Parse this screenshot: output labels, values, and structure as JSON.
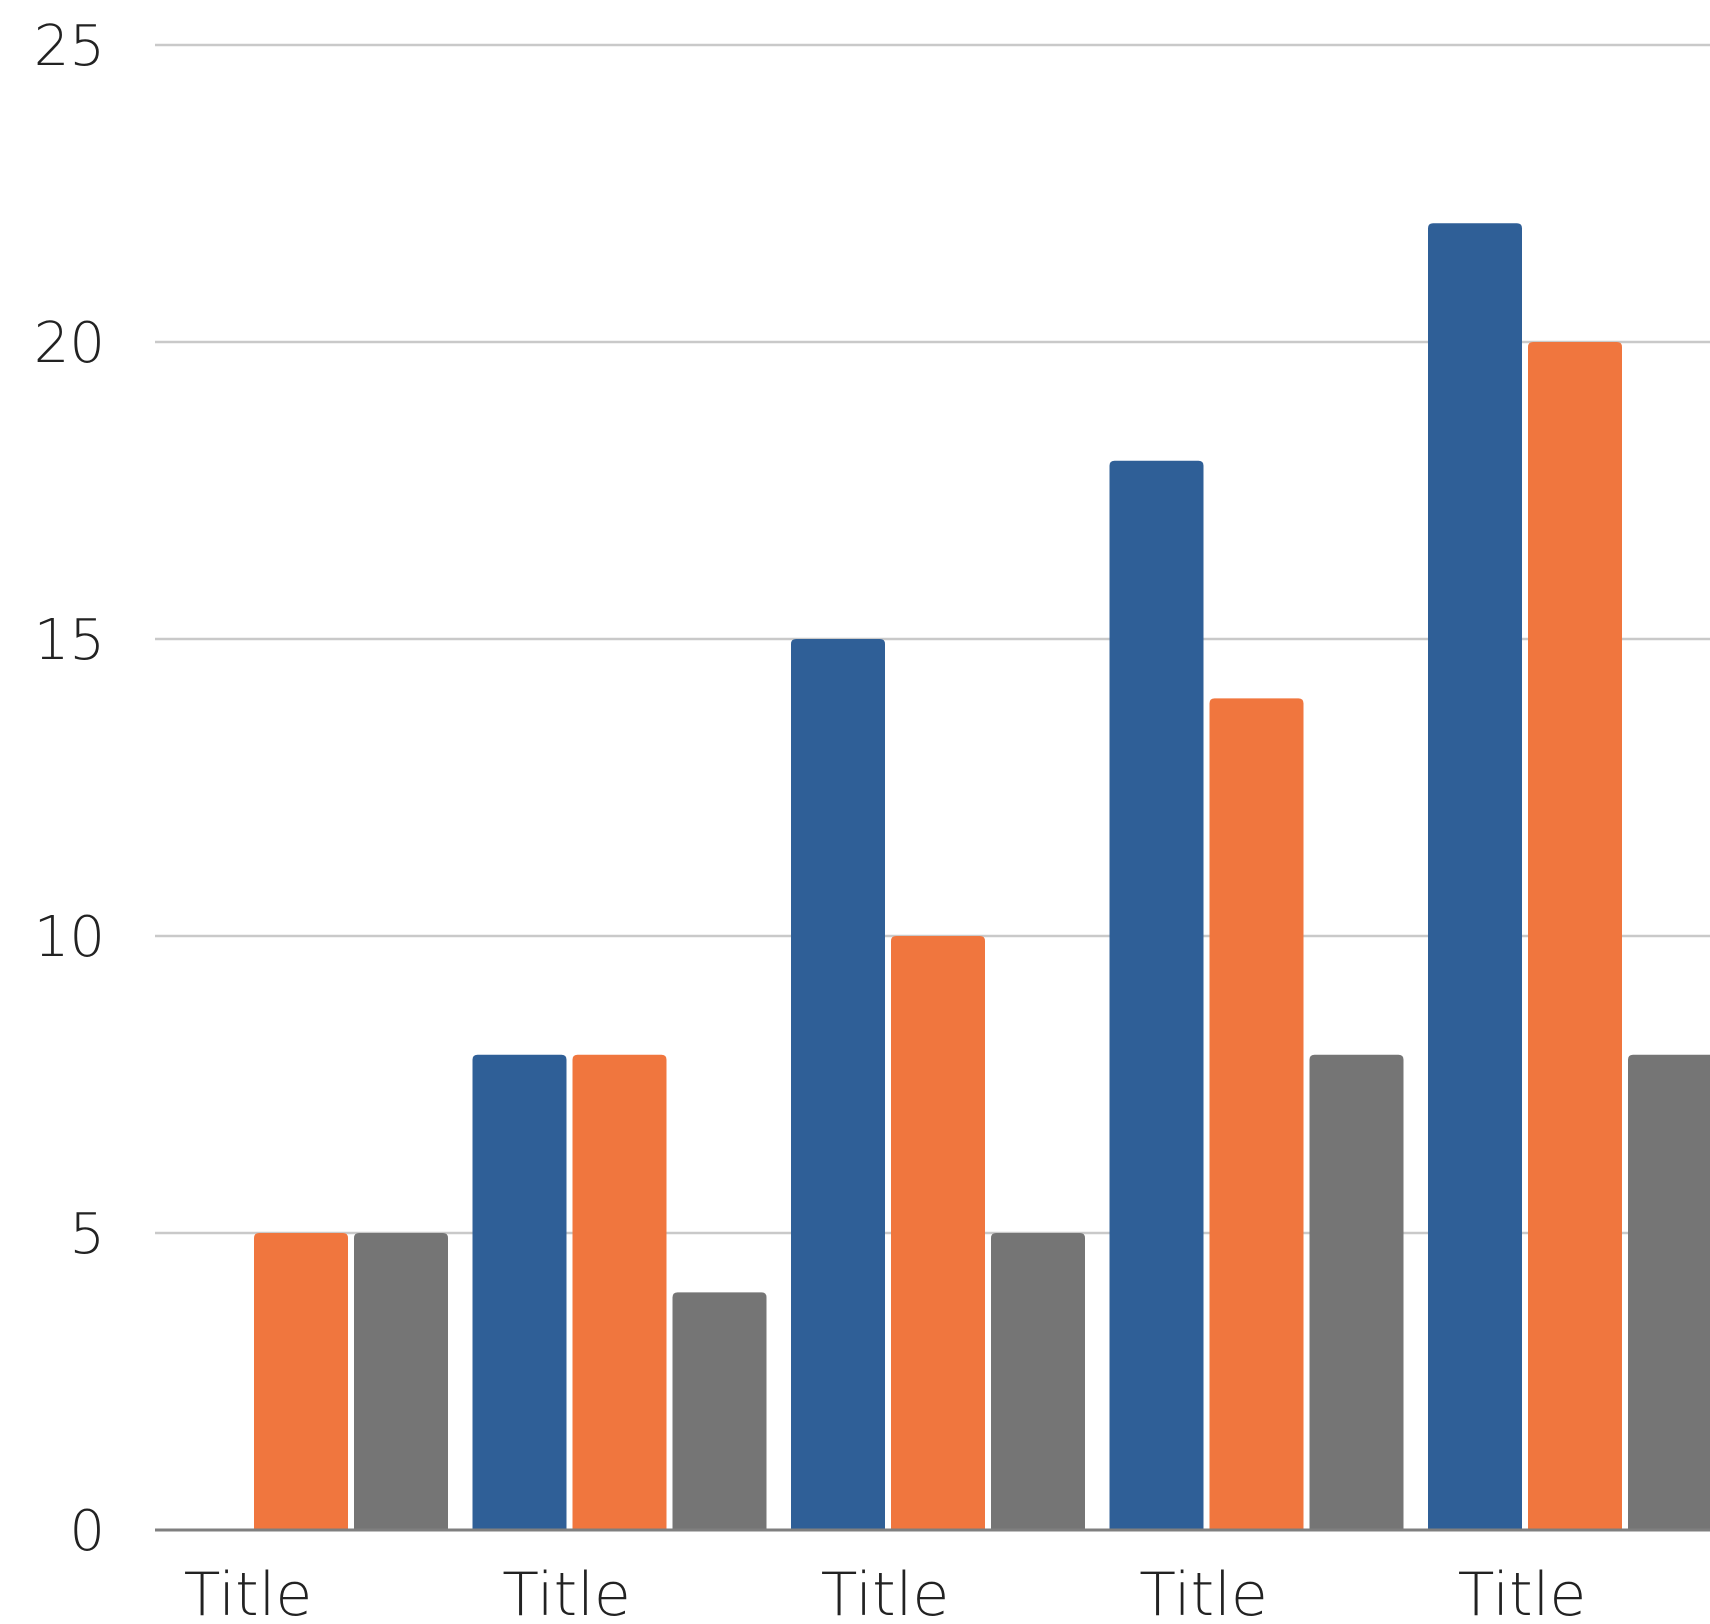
{
  "chart_data": {
    "type": "bar",
    "categories": [
      "Title",
      "Title",
      "Title",
      "Title",
      "Title"
    ],
    "series": [
      {
        "values": [
          0,
          8,
          15,
          18,
          22
        ],
        "color": "#2F5F97"
      },
      {
        "values": [
          5,
          8,
          10,
          14,
          20
        ],
        "color": "#F0763E"
      },
      {
        "values": [
          5,
          4,
          5,
          8,
          8
        ],
        "color": "#757575"
      }
    ],
    "y_ticks": [
      "0",
      "5",
      "10",
      "15",
      "20",
      "25"
    ],
    "ylim": [
      0,
      25
    ],
    "grid": true,
    "title": "",
    "xlabel": "",
    "ylabel": ""
  }
}
